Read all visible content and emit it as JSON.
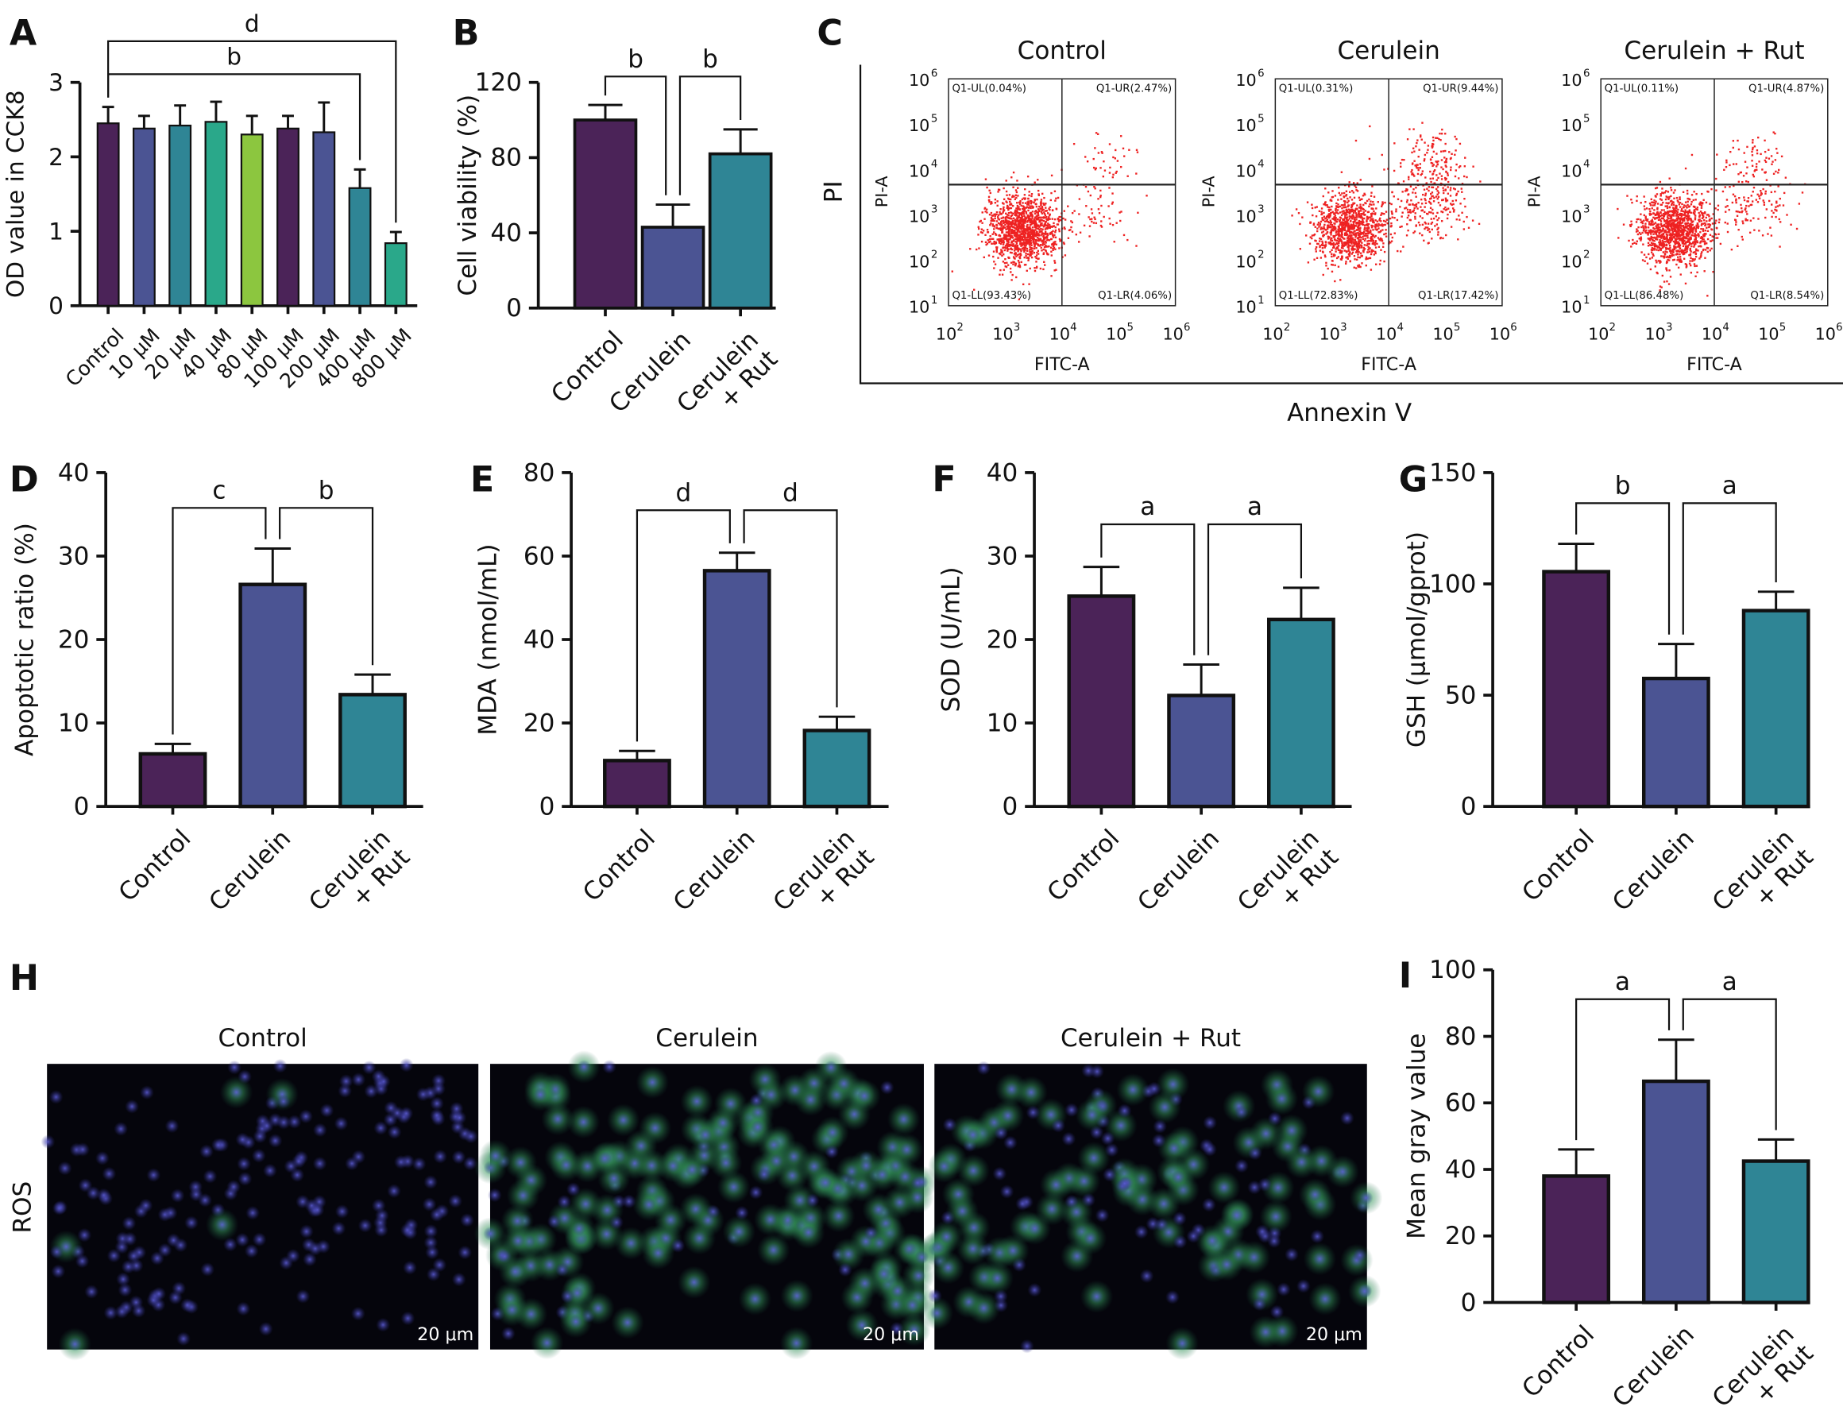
{
  "colors": {
    "purple": "#4b2358",
    "blue": "#4b5493",
    "teal": "#2f8595",
    "green_teal": "#2aa88a",
    "green": "#8cc63f",
    "flow_dot": "#ee2222"
  },
  "chart_data": [
    {
      "id": "A",
      "panel_letter": "A",
      "type": "bar",
      "ylabel": "OD value in CCK8",
      "ylim": [
        0,
        3
      ],
      "yticks": [
        0,
        1,
        2,
        3
      ],
      "categories": [
        "Control",
        "10 μM",
        "20 μM",
        "40 μM",
        "80 μM",
        "100 μM",
        "200 μM",
        "400 μM",
        "800 μM"
      ],
      "values": [
        2.45,
        2.38,
        2.42,
        2.47,
        2.3,
        2.38,
        2.33,
        1.58,
        0.84
      ],
      "errors": [
        0.22,
        0.17,
        0.27,
        0.27,
        0.25,
        0.17,
        0.4,
        0.25,
        0.15
      ],
      "bar_colors": [
        "purple",
        "blue",
        "teal",
        "green_teal",
        "green",
        "purple",
        "blue",
        "teal",
        "green_teal"
      ],
      "significance": [
        {
          "from": 0,
          "to": 7,
          "label": "b"
        },
        {
          "from": 0,
          "to": 8,
          "label": "d"
        }
      ]
    },
    {
      "id": "B",
      "panel_letter": "B",
      "type": "bar",
      "ylabel": "Cell viability (%)",
      "ylim": [
        0,
        120
      ],
      "yticks": [
        0,
        40,
        80,
        120
      ],
      "categories": [
        "Control",
        "Cerulein",
        "Cerulein\n+ Rut"
      ],
      "values": [
        100,
        43,
        82
      ],
      "errors": [
        8,
        12,
        13
      ],
      "bar_colors": [
        "purple",
        "blue",
        "teal"
      ],
      "significance": [
        {
          "from": 0,
          "to": 1,
          "label": "b"
        },
        {
          "from": 1,
          "to": 2,
          "label": "b"
        }
      ]
    },
    {
      "id": "D",
      "panel_letter": "D",
      "type": "bar",
      "ylabel": "Apoptotic ratio (%)",
      "ylim": [
        0,
        40
      ],
      "yticks": [
        0,
        10,
        20,
        30,
        40
      ],
      "categories": [
        "Control",
        "Cerulein",
        "Cerulein\n+ Rut"
      ],
      "values": [
        6.3,
        26.6,
        13.4
      ],
      "errors": [
        1.2,
        4.3,
        2.4
      ],
      "bar_colors": [
        "purple",
        "blue",
        "teal"
      ],
      "significance": [
        {
          "from": 0,
          "to": 1,
          "label": "c"
        },
        {
          "from": 1,
          "to": 2,
          "label": "b"
        }
      ]
    },
    {
      "id": "E",
      "panel_letter": "E",
      "type": "bar",
      "ylabel": "MDA (nmol/mL)",
      "ylim": [
        0,
        80
      ],
      "yticks": [
        0,
        20,
        40,
        60,
        80
      ],
      "categories": [
        "Control",
        "Cerulein",
        "Cerulein\n+ Rut"
      ],
      "values": [
        11,
        56.5,
        18.2
      ],
      "errors": [
        2.3,
        4.3,
        3.3
      ],
      "bar_colors": [
        "purple",
        "blue",
        "teal"
      ],
      "significance": [
        {
          "from": 0,
          "to": 1,
          "label": "d"
        },
        {
          "from": 1,
          "to": 2,
          "label": "d"
        }
      ]
    },
    {
      "id": "F",
      "panel_letter": "F",
      "type": "bar",
      "ylabel": "SOD (U/mL)",
      "ylim": [
        0,
        40
      ],
      "yticks": [
        0,
        10,
        20,
        30,
        40
      ],
      "categories": [
        "Control",
        "Cerulein",
        "Cerulein\n+ Rut"
      ],
      "values": [
        25.2,
        13.3,
        22.4
      ],
      "errors": [
        3.5,
        3.7,
        3.8
      ],
      "bar_colors": [
        "purple",
        "blue",
        "teal"
      ],
      "significance": [
        {
          "from": 0,
          "to": 1,
          "label": "a"
        },
        {
          "from": 1,
          "to": 2,
          "label": "a"
        }
      ]
    },
    {
      "id": "G",
      "panel_letter": "G",
      "type": "bar",
      "ylabel": "GSH (μmol/gprot)",
      "ylim": [
        0,
        150
      ],
      "yticks": [
        0,
        50,
        100,
        150
      ],
      "categories": [
        "Control",
        "Cerulein",
        "Cerulein\n+ Rut"
      ],
      "values": [
        105.5,
        57.5,
        88
      ],
      "errors": [
        12.5,
        15.5,
        8.5
      ],
      "bar_colors": [
        "purple",
        "blue",
        "teal"
      ],
      "significance": [
        {
          "from": 0,
          "to": 1,
          "label": "b"
        },
        {
          "from": 1,
          "to": 2,
          "label": "a"
        }
      ]
    },
    {
      "id": "I",
      "panel_letter": "I",
      "type": "bar",
      "ylabel": "Mean gray value",
      "ylim": [
        0,
        100
      ],
      "yticks": [
        0,
        20,
        40,
        60,
        80,
        100
      ],
      "categories": [
        "Control",
        "Cerulein",
        "Cerulein\n+ Rut"
      ],
      "values": [
        38,
        66.5,
        42.5
      ],
      "errors": [
        8,
        12.5,
        6.5
      ],
      "bar_colors": [
        "purple",
        "blue",
        "teal"
      ],
      "significance": [
        {
          "from": 0,
          "to": 1,
          "label": "a"
        },
        {
          "from": 1,
          "to": 2,
          "label": "a"
        }
      ]
    }
  ],
  "flow": {
    "panel_letter": "C",
    "outer_ylabel": "PI",
    "outer_xlabel": "Annexin V",
    "xlabel": "FITC-A",
    "ylabel": "PI-A",
    "xticks_exp": [
      2,
      3,
      4,
      5,
      6
    ],
    "yticks_exp": [
      1,
      2,
      3,
      4,
      5,
      6
    ],
    "plots": [
      {
        "title": "Control",
        "UL": "Q1-UL(0.04%)",
        "UR": "Q1-UR(2.47%)",
        "LL": "Q1-LL(93.43%)",
        "LR": "Q1-LR(4.06%)",
        "pct": {
          "UL": 0.04,
          "UR": 2.47,
          "LL": 93.43,
          "LR": 4.06
        }
      },
      {
        "title": "Cerulein",
        "UL": "Q1-UL(0.31%)",
        "UR": "Q1-UR(9.44%)",
        "LL": "Q1-LL(72.83%)",
        "LR": "Q1-LR(17.42%)",
        "pct": {
          "UL": 0.31,
          "UR": 9.44,
          "LL": 72.83,
          "LR": 17.42
        }
      },
      {
        "title": "Cerulein + Rut",
        "UL": "Q1-UL(0.11%)",
        "UR": "Q1-UR(4.87%)",
        "LL": "Q1-LL(86.48%)",
        "LR": "Q1-LR(8.54%)",
        "pct": {
          "UL": 0.11,
          "UR": 4.87,
          "LL": 86.48,
          "LR": 8.54
        }
      }
    ]
  },
  "ros": {
    "panel_letter": "H",
    "row_label": "ROS",
    "titles": [
      "Control",
      "Cerulein",
      "Cerulein + Rut"
    ],
    "scale_bar": "20 μm",
    "green_intensity": [
      0.05,
      0.8,
      0.5
    ]
  }
}
